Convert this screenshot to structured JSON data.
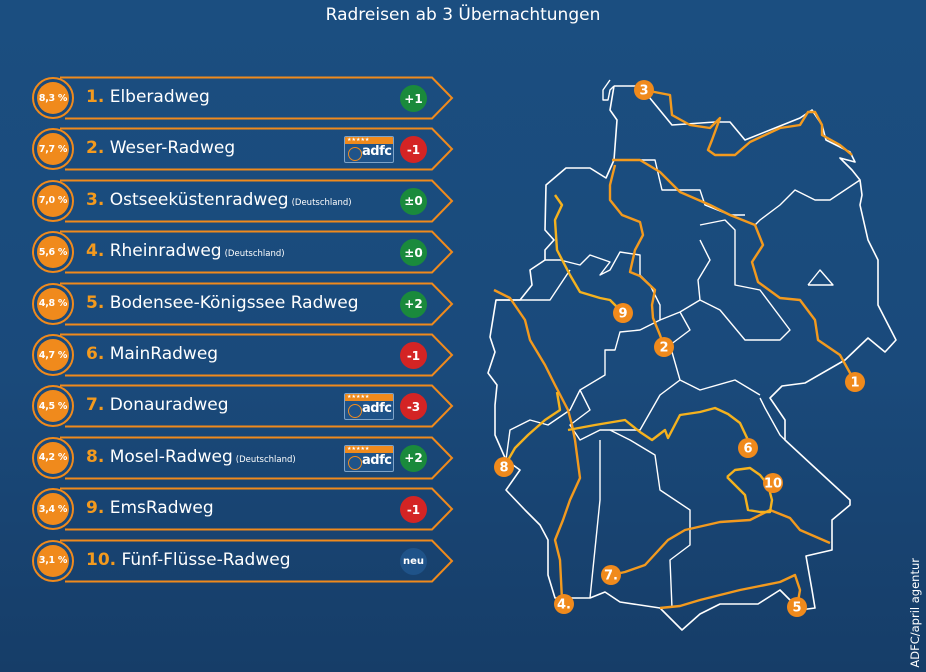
{
  "subtitle": "Radreisen ab 3 Übernachtungen",
  "credit": "ADFC/april agentur",
  "colors": {
    "accent": "#f08a1c",
    "up": "#1a8a3c",
    "down": "#d42424",
    "neutral": "#1a8a3c",
    "new": "#1f5389"
  },
  "badge_icon": "adfc-4-star-quality-logo",
  "badge_logo_text": "adfc",
  "rows": [
    {
      "share": "8,3 %",
      "rank": "1.",
      "name": "Elberadweg",
      "note": "",
      "change": "+1",
      "trend": "up",
      "adfc": false
    },
    {
      "share": "7,7 %",
      "rank": "2.",
      "name": "Weser-Radweg",
      "note": "",
      "change": "-1",
      "trend": "down",
      "adfc": true
    },
    {
      "share": "7,0 %",
      "rank": "3.",
      "name": "Ostseeküstenradweg",
      "note": "(Deutschland)",
      "change": "±0",
      "trend": "neutral",
      "adfc": false
    },
    {
      "share": "5,6 %",
      "rank": "4.",
      "name": "Rheinradweg",
      "note": "(Deutschland)",
      "change": "±0",
      "trend": "neutral",
      "adfc": false
    },
    {
      "share": "4,8 %",
      "rank": "5.",
      "name": "Bodensee-Königssee Radweg",
      "note": "",
      "change": "+2",
      "trend": "up",
      "adfc": false
    },
    {
      "share": "4,7 %",
      "rank": "6.",
      "name": "MainRadweg",
      "note": "",
      "change": "-1",
      "trend": "down",
      "adfc": false
    },
    {
      "share": "4,5 %",
      "rank": "7.",
      "name": "Donauradweg",
      "note": "",
      "change": "-3",
      "trend": "down",
      "adfc": true
    },
    {
      "share": "4,2 %",
      "rank": "8.",
      "name": "Mosel-Radweg",
      "note": "(Deutschland)",
      "change": "+2",
      "trend": "up",
      "adfc": true
    },
    {
      "share": "3,4 %",
      "rank": "9.",
      "name": "EmsRadweg",
      "note": "",
      "change": "-1",
      "trend": "down",
      "adfc": false
    },
    {
      "share": "3,1 %",
      "rank": "10.",
      "name": "Fünf-Flüsse-Radweg",
      "note": "",
      "change": "neu",
      "trend": "new",
      "adfc": false
    }
  ],
  "map_markers": [
    "1",
    "2",
    "3",
    "4.",
    "5",
    "6",
    "7.",
    "8",
    "9",
    "10"
  ]
}
